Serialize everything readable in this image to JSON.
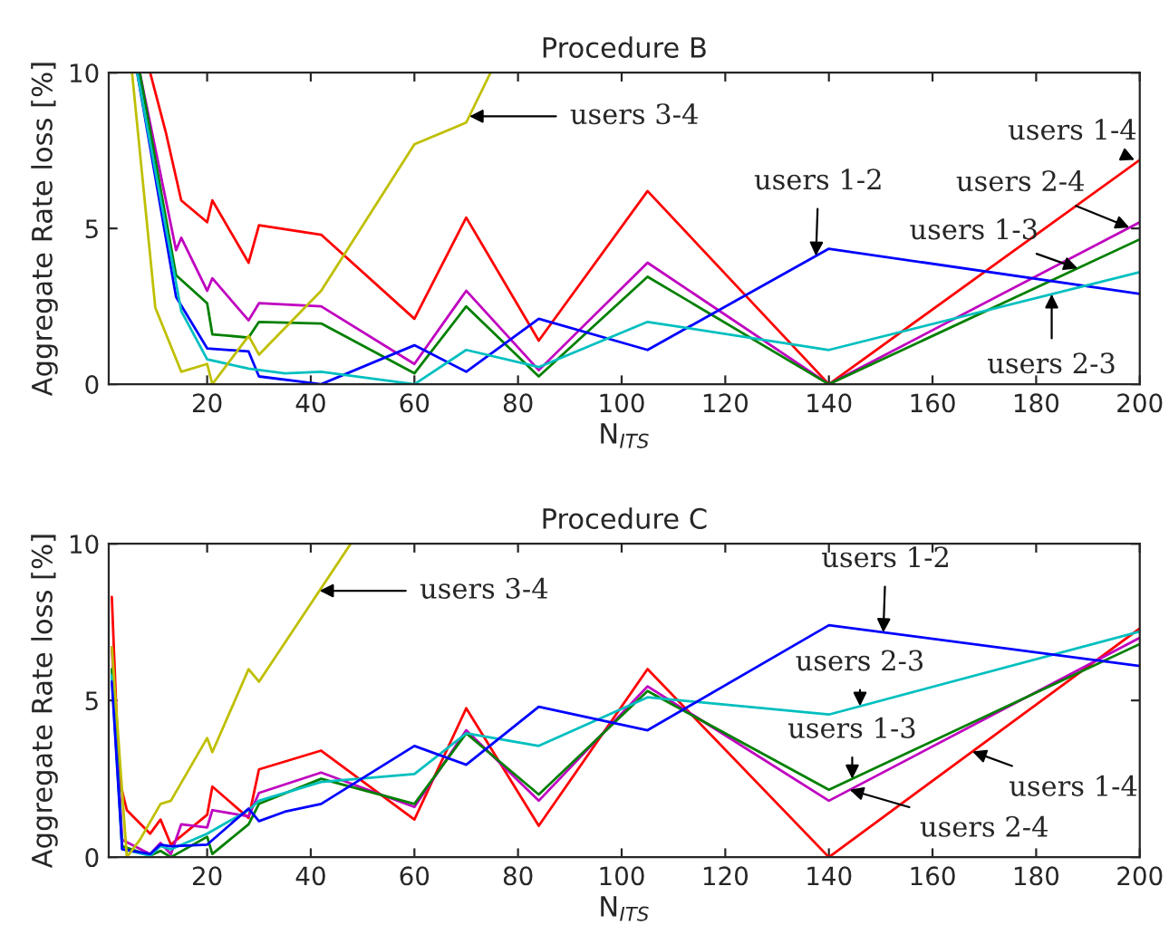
{
  "chart_data": [
    {
      "type": "line",
      "title": "Procedure B",
      "xlabel": "N$_{ITS}$",
      "ylabel": "Aggregate Rate loss [%]",
      "xlim": [
        1,
        200
      ],
      "xticks": [
        20,
        40,
        60,
        80,
        100,
        120,
        140,
        160,
        180,
        200
      ],
      "ylim": [
        0,
        10
      ],
      "yticks": [
        0,
        5,
        10
      ],
      "grid": false,
      "marker": "none",
      "line_style": "solid",
      "series": [
        {
          "color": "#ff0000",
          "x": [
            9,
            12,
            15,
            20,
            21,
            28,
            30,
            42,
            60,
            70,
            84,
            105,
            140,
            200
          ],
          "values": [
            10,
            8.1,
            5.9,
            5.2,
            5.9,
            3.9,
            5.1,
            4.8,
            2.1,
            5.35,
            1.4,
            6.2,
            0,
            7.2
          ]
        },
        {
          "color": "#bf00bf",
          "x": [
            7,
            14,
            15,
            20,
            21,
            28,
            30,
            42,
            60,
            70,
            84,
            105,
            140,
            200
          ],
          "values": [
            10,
            4.3,
            4.7,
            3.0,
            3.4,
            2.05,
            2.6,
            2.5,
            0.65,
            3.0,
            0.45,
            3.9,
            0,
            5.2
          ]
        },
        {
          "color": "#008000",
          "x": [
            7,
            14,
            20,
            21,
            28,
            30,
            42,
            60,
            70,
            84,
            105,
            140,
            200
          ],
          "values": [
            10,
            3.5,
            2.6,
            1.6,
            1.5,
            2.0,
            1.95,
            0.35,
            2.5,
            0.25,
            3.45,
            0,
            4.65
          ]
        },
        {
          "color": "#0000ff",
          "x": [
            6.5,
            14,
            20,
            28,
            30,
            42,
            60,
            70,
            84,
            105,
            140,
            200
          ],
          "values": [
            10,
            2.8,
            1.15,
            1.05,
            0.25,
            0,
            1.25,
            0.4,
            2.1,
            1.1,
            4.35,
            2.9
          ]
        },
        {
          "color": "#00bfbf",
          "x": [
            6.5,
            15,
            20,
            28,
            35,
            42,
            60,
            70,
            84,
            105,
            140,
            200
          ],
          "values": [
            10,
            2.35,
            0.8,
            0.5,
            0.35,
            0.4,
            0,
            1.1,
            0.55,
            2.0,
            1.1,
            3.6
          ]
        },
        {
          "color": "#bfbf00",
          "x": [
            5.5,
            10,
            15,
            20,
            21,
            28,
            30,
            42,
            60,
            70,
            74.7
          ],
          "values": [
            10,
            2.45,
            0.4,
            0.65,
            0,
            1.55,
            0.95,
            3.0,
            7.7,
            8.4,
            10
          ]
        }
      ],
      "annotations": [
        {
          "text": "users 3-4",
          "x": 70.6,
          "y": 8.6
        },
        {
          "text": "users 1-2",
          "x": 137.5,
          "y": 4.12
        },
        {
          "text": "users 1-4",
          "x": 199,
          "y": 7.2
        },
        {
          "text": "users 2-4",
          "x": 198,
          "y": 5.03
        },
        {
          "text": "users 1-3",
          "x": 188,
          "y": 3.72
        },
        {
          "text": "users 2-3",
          "x": 183,
          "y": 2.89
        }
      ]
    },
    {
      "type": "line",
      "title": "Procedure C",
      "xlabel": "N$_{ITS}$",
      "ylabel": "Aggregate Rate loss [%]",
      "xlim": [
        1,
        200
      ],
      "xticks": [
        20,
        40,
        60,
        80,
        100,
        120,
        140,
        160,
        180,
        200
      ],
      "ylim": [
        0,
        10
      ],
      "yticks": [
        0,
        5,
        10
      ],
      "grid": false,
      "marker": "none",
      "line_style": "solid",
      "series": [
        {
          "color": "#ff0000",
          "x": [
            1.6,
            3,
            4.5,
            9,
            11,
            13,
            20,
            21,
            28,
            30,
            42,
            60,
            70,
            84,
            105,
            140,
            200
          ],
          "values": [
            8.3,
            2.5,
            1.5,
            0.75,
            1.2,
            0.4,
            1.35,
            2.25,
            1.25,
            2.8,
            3.4,
            1.2,
            4.75,
            1.0,
            6.0,
            0,
            7.3
          ]
        },
        {
          "color": "#bf00bf",
          "x": [
            1.6,
            3.6,
            9,
            11,
            13,
            15,
            20,
            21,
            28,
            30,
            42,
            60,
            70,
            84,
            105,
            140,
            200
          ],
          "values": [
            6.7,
            0.55,
            0.1,
            0.45,
            0.1,
            1.05,
            0.95,
            1.5,
            1.3,
            2.05,
            2.7,
            1.6,
            4.05,
            1.8,
            5.45,
            1.8,
            7.0
          ]
        },
        {
          "color": "#008000",
          "x": [
            1.6,
            3.6,
            9,
            11,
            13,
            20,
            21,
            28,
            30,
            42,
            60,
            70,
            84,
            105,
            140,
            200
          ],
          "values": [
            6.0,
            0.35,
            0.05,
            0.2,
            0,
            0.65,
            0.1,
            1.05,
            1.7,
            2.5,
            1.7,
            3.95,
            2.0,
            5.3,
            2.15,
            6.8
          ]
        },
        {
          "color": "#00bfbf",
          "x": [
            1.6,
            3.6,
            9,
            11,
            13,
            20,
            28,
            30,
            42,
            60,
            70,
            84,
            105,
            140,
            200
          ],
          "values": [
            5.8,
            0.25,
            0.05,
            0.35,
            0.25,
            0.75,
            1.5,
            1.8,
            2.4,
            2.65,
            3.95,
            3.55,
            5.1,
            4.55,
            7.2
          ]
        },
        {
          "color": "#0000ff",
          "x": [
            1.6,
            3.6,
            9,
            11,
            13,
            20,
            28,
            30,
            35,
            42,
            60,
            70,
            84,
            105,
            140,
            200
          ],
          "values": [
            5.6,
            0.25,
            0.1,
            0.4,
            0.35,
            0.4,
            1.55,
            1.15,
            1.45,
            1.7,
            3.55,
            2.95,
            4.8,
            4.05,
            7.4,
            6.1
          ]
        },
        {
          "color": "#bfbf00",
          "x": [
            1.6,
            4.5,
            7,
            11,
            13,
            20,
            21,
            28,
            30,
            47.7
          ],
          "values": [
            6.7,
            0,
            0.55,
            1.7,
            1.8,
            3.8,
            3.35,
            6.0,
            5.6,
            10
          ]
        }
      ],
      "annotations": [
        {
          "text": "users 3-4",
          "x": 41.7,
          "y": 8.5
        },
        {
          "text": "users 1-2",
          "x": 150.5,
          "y": 7.17
        },
        {
          "text": "users 2-3",
          "x": 146,
          "y": 4.82
        },
        {
          "text": "users 1-3",
          "x": 144.5,
          "y": 2.5
        },
        {
          "text": "users 1-4",
          "x": 167.7,
          "y": 3.37
        },
        {
          "text": "users 2-4",
          "x": 144,
          "y": 2.15
        }
      ]
    }
  ]
}
